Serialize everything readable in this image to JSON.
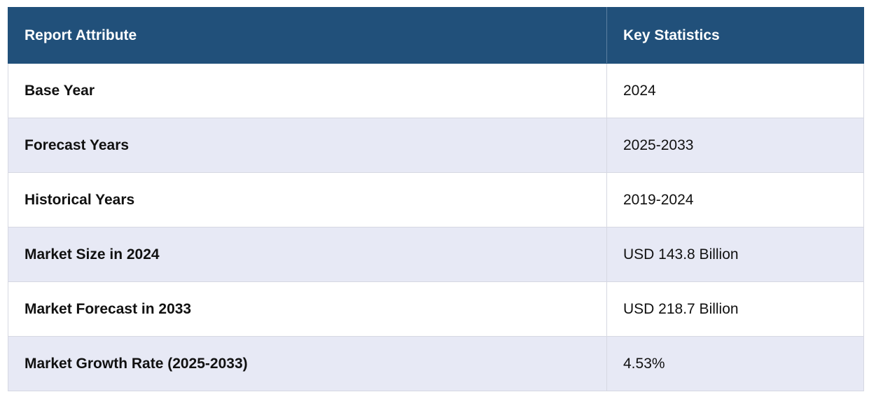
{
  "table": {
    "headers": {
      "attribute": "Report Attribute",
      "statistics": "Key Statistics"
    },
    "rows": [
      {
        "attribute": "Base Year",
        "value": "2024"
      },
      {
        "attribute": "Forecast Years",
        "value": "2025-2033"
      },
      {
        "attribute": "Historical Years",
        "value": "2019-2024"
      },
      {
        "attribute": "Market Size in 2024",
        "value": "USD 143.8 Billion"
      },
      {
        "attribute": "Market Forecast in 2033",
        "value": "USD 218.7 Billion"
      },
      {
        "attribute": "Market Growth Rate (2025-2033)",
        "value": "4.53%"
      }
    ]
  },
  "colors": {
    "header_bg": "#21507a",
    "header_text": "#ffffff",
    "row_alt_bg": "#e7e9f5",
    "row_bg": "#ffffff",
    "border": "#d6d8e2"
  }
}
